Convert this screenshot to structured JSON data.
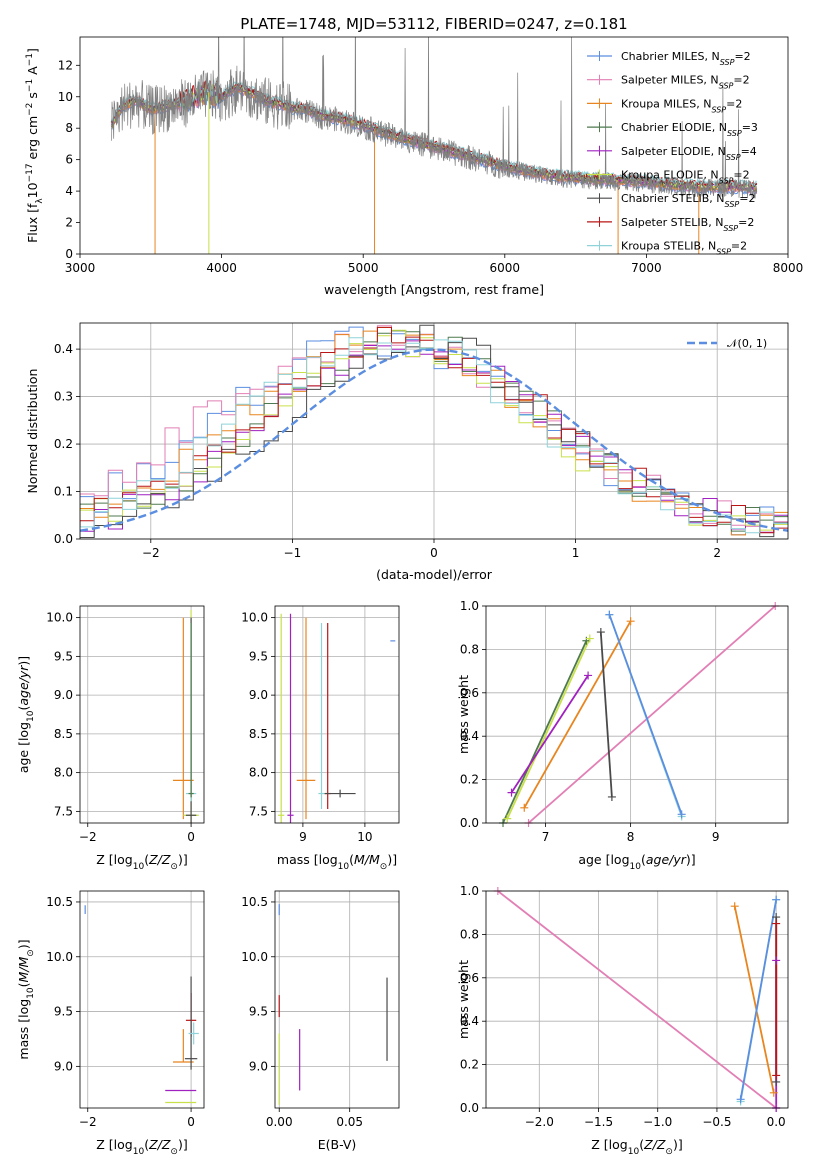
{
  "figure_title": "PLATE=1748, MJD=53112, FIBERID=0247, z=0.181",
  "colors": {
    "chabrier_miles": "#5b8ee0",
    "salpeter_miles": "#e27fb5",
    "kroupa_miles": "#e8851f",
    "chabrier_elodie": "#4f7a4f",
    "salpeter_elodie": "#a020c0",
    "kroupa_elodie": "#c8e04a",
    "chabrier_stelib": "#4a4a4a",
    "salpeter_stelib": "#b81616",
    "kroupa_stelib": "#8fd3d9",
    "data": "#808080",
    "normal": "#5b8ee0"
  },
  "chart_data": [
    {
      "id": "spectrum",
      "type": "line",
      "title": "PLATE=1748, MJD=53112, FIBERID=0247, z=0.181",
      "xlabel": "wavelength [Angstrom, rest frame]",
      "ylabel": "Flux [f_λ 10^-17 erg cm^-2 s^-1 A^-1]",
      "xlim": [
        3000,
        8000
      ],
      "ylim": [
        0,
        13.8
      ],
      "xticks": [
        "3000",
        "4000",
        "5000",
        "6000",
        "7000",
        "8000"
      ],
      "yticks": [
        "0",
        "2",
        "4",
        "6",
        "8",
        "10",
        "12"
      ],
      "legend_position": "upper-right",
      "grid": false,
      "legend": [
        {
          "label": "Chabrier MILES, N",
          "sub": "SSP",
          "tail": "=2",
          "color_key": "chabrier_miles"
        },
        {
          "label": "Salpeter MILES, N",
          "sub": "SSP",
          "tail": "=2",
          "color_key": "salpeter_miles"
        },
        {
          "label": "Kroupa MILES, N",
          "sub": "SSP",
          "tail": "=2",
          "color_key": "kroupa_miles"
        },
        {
          "label": "Chabrier ELODIE, N",
          "sub": "SSP",
          "tail": "=3",
          "color_key": "chabrier_elodie"
        },
        {
          "label": "Salpeter ELODIE, N",
          "sub": "SSP",
          "tail": "=4",
          "color_key": "salpeter_elodie"
        },
        {
          "label": "Kroupa ELODIE, N",
          "sub": "SSP",
          "tail": "=2",
          "color_key": "kroupa_elodie"
        },
        {
          "label": "Chabrier STELIB, N",
          "sub": "SSP",
          "tail": "=2",
          "color_key": "chabrier_stelib"
        },
        {
          "label": "Salpeter STELIB, N",
          "sub": "SSP",
          "tail": "=2",
          "color_key": "salpeter_stelib"
        },
        {
          "label": "Kroupa STELIB, N",
          "sub": "SSP",
          "tail": "=2",
          "color_key": "kroupa_stelib"
        }
      ],
      "continuum": {
        "x": [
          3220,
          3300,
          3400,
          3500,
          3600,
          3700,
          3800,
          3900,
          4000,
          4100,
          4200,
          4300,
          4400,
          4500,
          4600,
          4700,
          4800,
          4900,
          5000,
          5200,
          5400,
          5600,
          5800,
          6000,
          6200,
          6400,
          6600,
          6800,
          7000,
          7200,
          7400,
          7600,
          7780
        ],
        "y": [
          8.2,
          9.4,
          9.8,
          9.2,
          9.4,
          9.6,
          9.9,
          10.3,
          10.0,
          10.6,
          10.3,
          9.8,
          9.6,
          9.3,
          9.2,
          8.8,
          8.7,
          8.5,
          8.2,
          7.6,
          7.1,
          6.6,
          6.1,
          5.6,
          5.2,
          4.9,
          4.8,
          4.7,
          4.6,
          4.4,
          4.3,
          4.3,
          4.2
        ]
      },
      "model_spikes": [
        {
          "x": 3530,
          "color_key": "kroupa_miles"
        },
        {
          "x": 3910,
          "color_key": "kroupa_elodie"
        },
        {
          "x": 5080,
          "color_key": "kroupa_miles"
        },
        {
          "x": 6800,
          "color_key": "kroupa_miles"
        },
        {
          "x": 7370,
          "color_key": "kroupa_miles"
        }
      ]
    },
    {
      "id": "residuals",
      "type": "histogram",
      "xlabel": "(data-model)/error",
      "ylabel": "Normed distribution",
      "xlim": [
        -2.5,
        2.5
      ],
      "ylim": [
        0,
        0.455
      ],
      "xticks": [
        "−2",
        "−1",
        "0",
        "1",
        "2"
      ],
      "yticks": [
        "0.0",
        "0.1",
        "0.2",
        "0.3",
        "0.4"
      ],
      "grid": true,
      "legend_position": "upper-right",
      "bin_edges": [
        -2.5,
        2.5
      ],
      "bin_count": 50,
      "series": [
        {
          "color_key": "chabrier_miles",
          "shift": -0.4,
          "width": 1.05
        },
        {
          "color_key": "salpeter_miles",
          "shift": -0.45,
          "width": 1.15
        },
        {
          "color_key": "kroupa_miles",
          "shift": -0.3,
          "width": 1.0
        },
        {
          "color_key": "chabrier_elodie",
          "shift": -0.2,
          "width": 0.95
        },
        {
          "color_key": "salpeter_elodie",
          "shift": -0.15,
          "width": 0.95
        },
        {
          "color_key": "kroupa_elodie",
          "shift": -0.25,
          "width": 0.95
        },
        {
          "color_key": "chabrier_stelib",
          "shift": -0.1,
          "width": 0.92
        },
        {
          "color_key": "salpeter_stelib",
          "shift": -0.2,
          "width": 0.98
        },
        {
          "color_key": "kroupa_stelib",
          "shift": -0.3,
          "width": 1.0
        }
      ],
      "reference_curve": {
        "label": "𝒩(0, 1)",
        "mean": 0,
        "sigma": 1,
        "color_key": "normal"
      }
    },
    {
      "id": "age_vs_z",
      "type": "errorbar",
      "xlabel": "Z [log10(Z/Z⊙)]",
      "ylabel": "age  [log10(age/yr)]",
      "xlim": [
        -2.15,
        0.25
      ],
      "ylim": [
        7.35,
        10.15
      ],
      "xticks": [
        "−2",
        "0"
      ],
      "yticks": [
        "7.5",
        "8.0",
        "8.5",
        "9.0",
        "9.5",
        "10.0"
      ],
      "grid": true,
      "points": [
        {
          "color_key": "kroupa_miles",
          "x": -0.15,
          "xerr": 0.2,
          "y": 7.9,
          "yerr": [
            0.5,
            2.1
          ]
        },
        {
          "color_key": "kroupa_elodie",
          "x": 0.0,
          "xerr": 0.15,
          "y": 7.45,
          "yerr": [
            0.1,
            2.65
          ]
        },
        {
          "color_key": "chabrier_stelib",
          "x": 0.0,
          "xerr": 0.1,
          "y": 7.45,
          "yerr": [
            0.1,
            2.55
          ]
        },
        {
          "color_key": "kroupa_stelib",
          "x": 0.0,
          "xerr": 0.1,
          "y": 7.73,
          "yerr": [
            0.1,
            2.2
          ]
        },
        {
          "color_key": "chabrier_elodie",
          "x": 0.0,
          "xerr": 0.05,
          "y": 7.73,
          "yerr": [
            0.05,
            2.2
          ]
        }
      ]
    },
    {
      "id": "age_vs_mass",
      "type": "errorbar",
      "xlabel": "mass [log10(M/M⊙)]",
      "ylabel": "",
      "xlim": [
        8.55,
        10.55
      ],
      "ylim": [
        7.35,
        10.15
      ],
      "xticks": [
        "9",
        "10"
      ],
      "yticks": [
        "7.5",
        "8.0",
        "8.5",
        "9.0",
        "9.5",
        "10.0"
      ],
      "grid": true,
      "points": [
        {
          "color_key": "kroupa_elodie",
          "x": 8.65,
          "xerr": 0.05,
          "y": 7.45,
          "yerr": [
            0.1,
            2.6
          ]
        },
        {
          "color_key": "salpeter_elodie",
          "x": 8.8,
          "xerr": 0.05,
          "y": 7.45,
          "yerr": [
            0.1,
            2.6
          ]
        },
        {
          "color_key": "kroupa_miles",
          "x": 9.05,
          "xerr": 0.15,
          "y": 7.9,
          "yerr": [
            0.5,
            2.1
          ]
        },
        {
          "color_key": "salpeter_stelib",
          "x": 9.4,
          "xerr": 0.05,
          "y": 7.73,
          "yerr": [
            0.2,
            2.2
          ]
        },
        {
          "color_key": "chabrier_stelib",
          "x": 9.6,
          "xerr": 0.25,
          "y": 7.73,
          "yerr": [
            0.05,
            0.05
          ]
        },
        {
          "color_key": "kroupa_stelib",
          "x": 9.3,
          "xerr": 0.05,
          "y": 7.73,
          "yerr": [
            0.2,
            2.2
          ]
        },
        {
          "color_key": "chabrier_miles",
          "x": 10.45,
          "xerr": 0.04,
          "y": 9.7,
          "yerr": [
            0,
            0
          ]
        }
      ]
    },
    {
      "id": "weight_vs_age",
      "type": "line",
      "xlabel": "age  [log10(age/yr)]",
      "ylabel": "mass weight",
      "xlim": [
        6.3,
        9.85
      ],
      "ylim": [
        0,
        1.0
      ],
      "xticks": [
        "7",
        "8",
        "9"
      ],
      "yticks": [
        "0.0",
        "0.2",
        "0.4",
        "0.6",
        "0.8",
        "1.0"
      ],
      "grid": true,
      "series": [
        {
          "color_key": "salpeter_miles",
          "x": [
            6.8,
            9.7
          ],
          "y": [
            0.0,
            1.0
          ]
        },
        {
          "color_key": "kroupa_miles",
          "x": [
            6.75,
            8.0
          ],
          "y": [
            0.07,
            0.93
          ]
        },
        {
          "color_key": "chabrier_stelib",
          "x": [
            7.65,
            7.78
          ],
          "y": [
            0.88,
            0.12
          ]
        },
        {
          "color_key": "kroupa_stelib",
          "x": [
            7.75,
            8.6
          ],
          "y": [
            0.96,
            0.03
          ]
        },
        {
          "color_key": "chabrier_miles",
          "x": [
            7.75,
            8.6
          ],
          "y": [
            0.96,
            0.04
          ]
        },
        {
          "color_key": "chabrier_elodie",
          "x": [
            6.5,
            7.48
          ],
          "y": [
            0.0,
            0.84
          ]
        },
        {
          "color_key": "kroupa_elodie",
          "x": [
            6.55,
            7.52
          ],
          "y": [
            0.02,
            0.85
          ]
        },
        {
          "color_key": "salpeter_elodie",
          "x": [
            6.6,
            7.5
          ],
          "y": [
            0.14,
            0.68
          ]
        }
      ]
    },
    {
      "id": "mass_vs_z",
      "type": "errorbar",
      "xlabel": "Z [log10(Z/Z⊙)]",
      "ylabel": "mass [log10(M/M⊙)]",
      "xlim": [
        -2.15,
        0.25
      ],
      "ylim": [
        8.62,
        10.6
      ],
      "xticks": [
        "−2",
        "0"
      ],
      "yticks": [
        "9.0",
        "9.5",
        "10.0",
        "10.5"
      ],
      "grid": true,
      "points": [
        {
          "color_key": "chabrier_miles",
          "x": -2.05,
          "xerr": 0.0,
          "y": 10.43,
          "yerr": [
            0.04,
            0.04
          ]
        },
        {
          "color_key": "kroupa_miles",
          "x": -0.15,
          "xerr": 0.2,
          "y": 9.04,
          "yerr": [
            0.0,
            0.3
          ]
        },
        {
          "color_key": "salpeter_elodie",
          "x": -0.2,
          "xerr": 0.3,
          "y": 8.78,
          "yerr": [
            0,
            0
          ]
        },
        {
          "color_key": "kroupa_elodie",
          "x": -0.2,
          "xerr": 0.3,
          "y": 8.67,
          "yerr": [
            0,
            0
          ]
        },
        {
          "color_key": "salpeter_stelib",
          "x": 0.0,
          "xerr": 0.1,
          "y": 9.42,
          "yerr": [
            0.15,
            0.25
          ]
        },
        {
          "color_key": "chabrier_stelib",
          "x": 0.0,
          "xerr": 0.12,
          "y": 9.07,
          "yerr": [
            0.1,
            0.75
          ]
        },
        {
          "color_key": "kroupa_stelib",
          "x": 0.05,
          "xerr": 0.1,
          "y": 9.3,
          "yerr": [
            0.1,
            0.1
          ]
        }
      ]
    },
    {
      "id": "mass_vs_ebv",
      "type": "errorbar",
      "xlabel": "E(B-V)",
      "ylabel": "",
      "xlim": [
        -0.003,
        0.085
      ],
      "ylim": [
        8.62,
        10.6
      ],
      "xticks": [
        "0.00",
        "0.05"
      ],
      "yticks": [
        "9.0",
        "9.5",
        "10.0",
        "10.5"
      ],
      "grid": true,
      "points": [
        {
          "color_key": "chabrier_miles",
          "x": 0.0,
          "y": 10.43,
          "yerr": [
            0.05,
            0.05
          ]
        },
        {
          "color_key": "salpeter_stelib",
          "x": 0.0,
          "y": 9.55,
          "yerr": [
            0.1,
            0.1
          ]
        },
        {
          "color_key": "kroupa_elodie",
          "x": 0.0,
          "y": 9.0,
          "yerr": [
            0.35,
            0.3
          ]
        },
        {
          "color_key": "salpeter_elodie",
          "x": 0.0145,
          "y": 9.06,
          "yerr": [
            0.28,
            0.28
          ]
        },
        {
          "color_key": "chabrier_stelib",
          "x": 0.0765,
          "y": 9.43,
          "yerr": [
            0.38,
            0.38
          ]
        }
      ]
    },
    {
      "id": "weight_vs_z",
      "type": "line",
      "xlabel": "Z [log10(Z/Z⊙)]",
      "ylabel": "mass weight",
      "xlim": [
        -2.45,
        0.1
      ],
      "ylim": [
        0,
        1.0
      ],
      "xticks": [
        "−2.0",
        "−1.5",
        "−1.0",
        "−0.5",
        "0.0"
      ],
      "yticks": [
        "0.0",
        "0.2",
        "0.4",
        "0.6",
        "0.8",
        "1.0"
      ],
      "grid": true,
      "series": [
        {
          "color_key": "salpeter_miles",
          "x": [
            -2.35,
            0.0
          ],
          "y": [
            1.0,
            0.0
          ]
        },
        {
          "color_key": "kroupa_miles",
          "x": [
            -0.35,
            -0.02
          ],
          "y": [
            0.93,
            0.07
          ]
        },
        {
          "color_key": "kroupa_stelib",
          "x": [
            -0.3,
            0.0
          ],
          "y": [
            0.03,
            0.96
          ]
        },
        {
          "color_key": "chabrier_miles",
          "x": [
            -0.3,
            0.0
          ],
          "y": [
            0.04,
            0.96
          ]
        },
        {
          "color_key": "chabrier_stelib",
          "x": [
            0.0,
            0.0
          ],
          "y": [
            0.12,
            0.88
          ]
        },
        {
          "color_key": "salpeter_elodie",
          "x": [
            0.0,
            0.0
          ],
          "y": [
            0.0,
            0.68
          ]
        },
        {
          "color_key": "salpeter_stelib",
          "x": [
            0.0,
            0.0
          ],
          "y": [
            0.15,
            0.85
          ]
        }
      ]
    }
  ]
}
